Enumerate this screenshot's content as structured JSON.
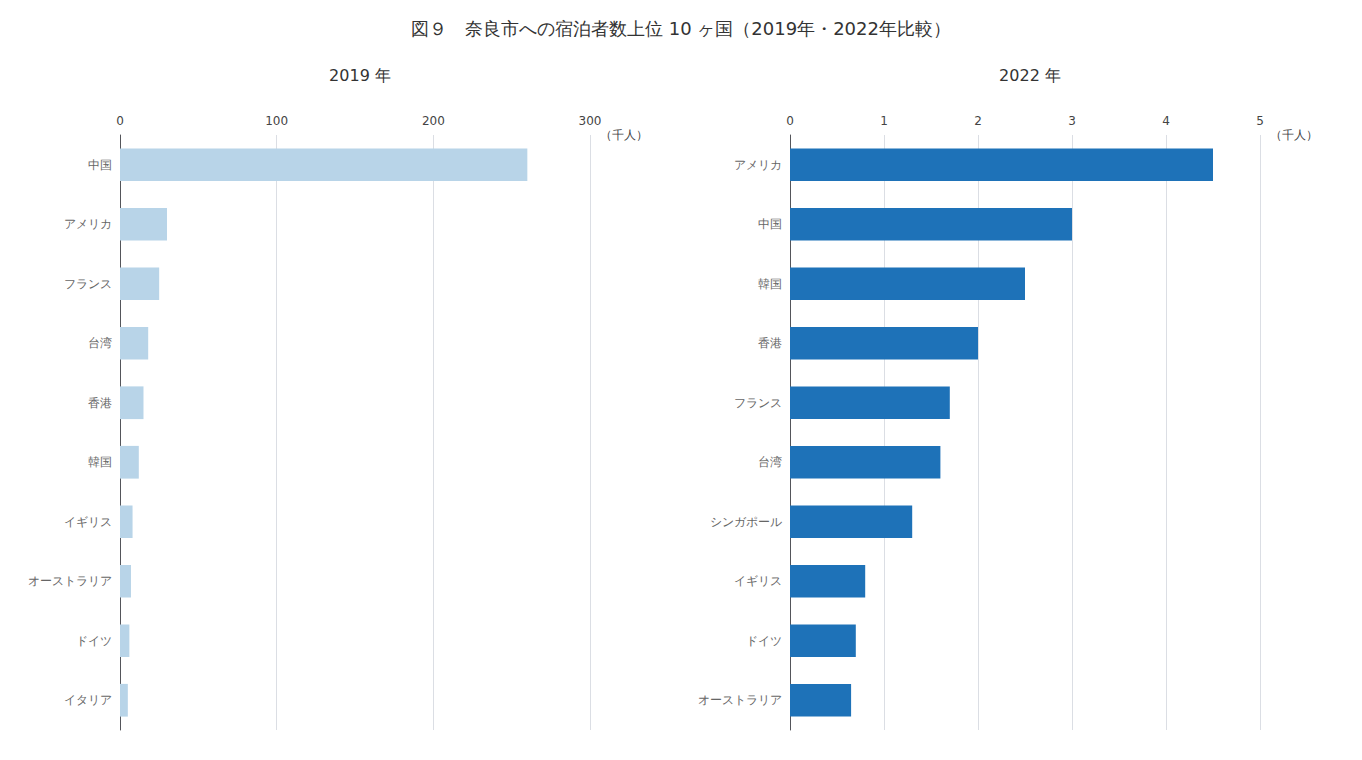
{
  "title": "図９　奈良市への宿泊者数上位 10 ヶ国（2019年・2022年比較）",
  "chart_data": [
    {
      "type": "bar",
      "orientation": "horizontal",
      "title": "2019 年",
      "xlabel": "（千人）",
      "categories": [
        "中国",
        "アメリカ",
        "フランス",
        "台湾",
        "香港",
        "韓国",
        "イギリス",
        "オーストラリア",
        "ドイツ",
        "イタリア"
      ],
      "values": [
        260,
        30,
        25,
        18,
        15,
        12,
        8,
        7,
        6,
        5
      ],
      "color": "#b8d4e8",
      "xlim": [
        0,
        300
      ],
      "xticks": [
        0,
        100,
        200,
        300
      ],
      "grid": true
    },
    {
      "type": "bar",
      "orientation": "horizontal",
      "title": "2022 年",
      "xlabel": "（千人）",
      "categories": [
        "アメリカ",
        "中国",
        "韓国",
        "香港",
        "フランス",
        "台湾",
        "シンガポール",
        "イギリス",
        "ドイツ",
        "オーストラリア"
      ],
      "values": [
        4.5,
        3.0,
        2.5,
        2.0,
        1.7,
        1.6,
        1.3,
        0.8,
        0.7,
        0.65
      ],
      "color": "#1e72b8",
      "xlim": [
        0,
        5
      ],
      "xticks": [
        0,
        1,
        2,
        3,
        4,
        5
      ],
      "grid": true
    }
  ]
}
